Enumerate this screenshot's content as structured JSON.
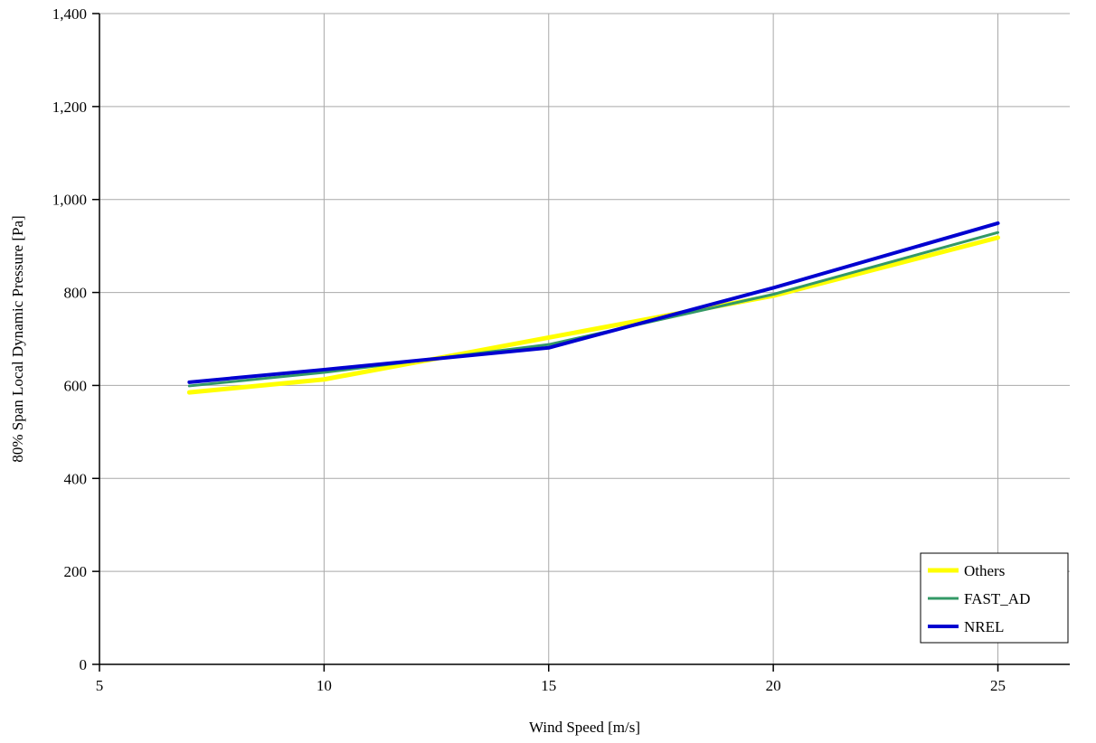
{
  "chart_data": {
    "type": "line",
    "title": "",
    "xlabel": "Wind Speed [m/s]",
    "ylabel": "80% Span Local Dynamic Pressure [Pa]",
    "x": [
      7,
      10,
      15,
      20,
      25
    ],
    "series": [
      {
        "name": "Others",
        "color": "#FFFF00",
        "stroke_width": 5,
        "values": [
          585,
          613,
          703,
          793,
          918
        ]
      },
      {
        "name": "FAST_AD",
        "color": "#339966",
        "stroke_width": 3,
        "values": [
          599,
          628,
          688,
          796,
          929
        ]
      },
      {
        "name": "NREL",
        "color": "#0000D0",
        "stroke_width": 4,
        "values": [
          607,
          634,
          681,
          810,
          949
        ]
      }
    ],
    "xlim": [
      5,
      26.6
    ],
    "xticks": [
      5,
      10,
      15,
      20,
      25
    ],
    "ylim": [
      0,
      1400
    ],
    "yticks": [
      0,
      200,
      400,
      600,
      800,
      1000,
      1200,
      1400
    ],
    "grid": true,
    "gridline_color": "#A9A9A9",
    "axis_color": "#000000",
    "legend": {
      "position": "bottom-right",
      "entries": [
        "Others",
        "FAST_AD",
        "NREL"
      ]
    }
  }
}
